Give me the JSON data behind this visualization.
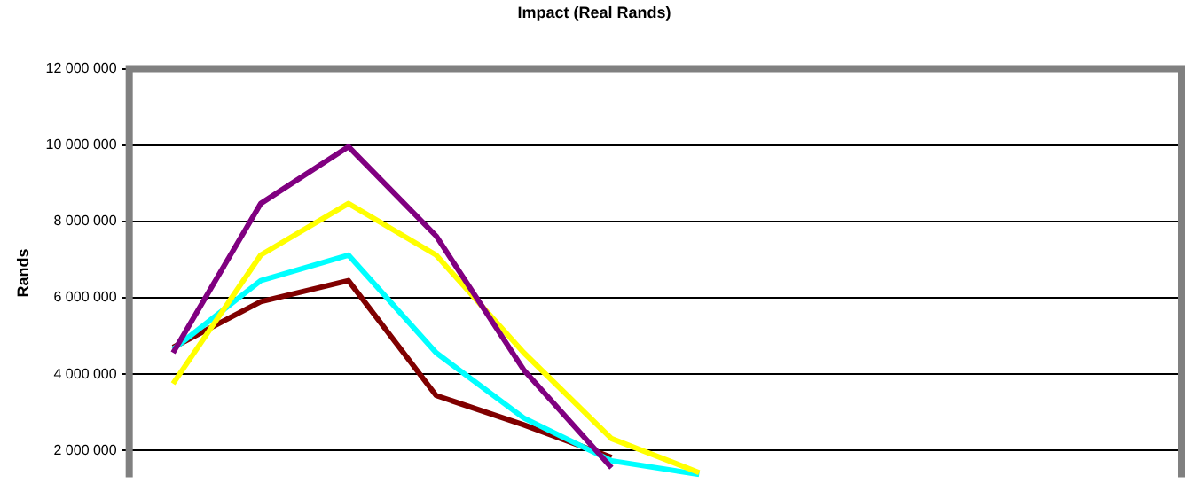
{
  "chart_data": {
    "type": "line",
    "title": "Impact (Real Rands)",
    "ylabel": "Rands",
    "categories": [
      null,
      null,
      null,
      null,
      null,
      null,
      null,
      null,
      null,
      null,
      null,
      null
    ],
    "series": [
      {
        "color": "#800080",
        "values": [
          4560000,
          8470000,
          9960000,
          7620000,
          4110000,
          1550000,
          null,
          null,
          null,
          null,
          null,
          null
        ]
      },
      {
        "color": "#ffff00",
        "values": [
          3750000,
          7120000,
          8470000,
          7120000,
          4560000,
          2310000,
          1420000,
          null,
          null,
          null,
          null,
          null
        ]
      },
      {
        "color": "#00ffff",
        "values": [
          4650000,
          6450000,
          7120000,
          4560000,
          2850000,
          1730000,
          1370000,
          null,
          null,
          null,
          null,
          null
        ]
      },
      {
        "color": "#800000",
        "values": [
          4700000,
          5900000,
          6450000,
          3440000,
          2670000,
          1820000,
          null,
          null,
          null,
          null,
          null,
          null
        ]
      }
    ],
    "ylim": [
      1300000,
      12000000
    ],
    "yticks": [
      {
        "value": 2000000,
        "label": "2 000 000"
      },
      {
        "value": 4000000,
        "label": "4 000 000"
      },
      {
        "value": 6000000,
        "label": "6 000 000"
      },
      {
        "value": 8000000,
        "label": "8 000 000"
      },
      {
        "value": 10000000,
        "label": "10 000 000"
      },
      {
        "value": 12000000,
        "label": "12 000 000"
      }
    ],
    "grid": "y",
    "legend": false,
    "tick_labels": "y",
    "marker": "none",
    "line_style": "solid"
  }
}
